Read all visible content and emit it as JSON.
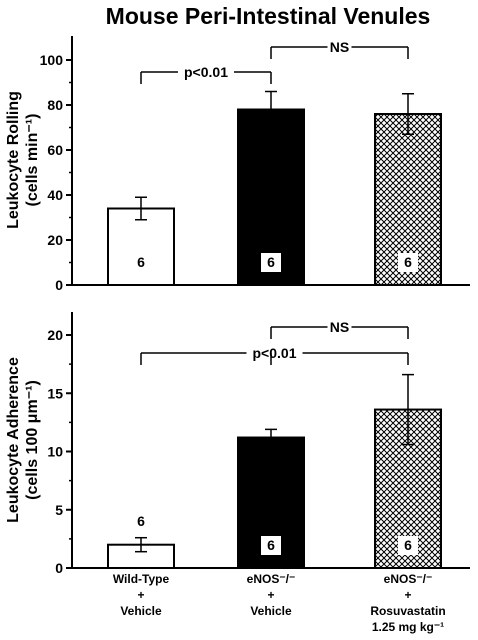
{
  "title": "Mouse Peri-Intestinal Venules",
  "categories": [
    [
      "Wild-Type",
      "+",
      "Vehicle"
    ],
    [
      "eNOS⁻/⁻",
      "+",
      "Vehicle"
    ],
    [
      "eNOS⁻/⁻",
      "+",
      "Rosuvastatin",
      "1.25 mg kg⁻¹"
    ]
  ],
  "colors": {
    "bar_fills": [
      "#ffffff",
      "#000000",
      "crosshatch"
    ],
    "stroke": "#000000"
  },
  "chart_data": [
    {
      "type": "bar",
      "ylabel": [
        "Leukocyte Rolling",
        "(cells min⁻¹)"
      ],
      "ylim": [
        0,
        100
      ],
      "yticks": [
        0,
        20,
        40,
        60,
        80,
        100
      ],
      "values": [
        34,
        78,
        76
      ],
      "errors": [
        5,
        8,
        9
      ],
      "n_labels": [
        "6",
        "6",
        "6"
      ],
      "annotations": [
        {
          "text": "p<0.01",
          "from": 0,
          "to": 1
        },
        {
          "text": "NS",
          "from": 1,
          "to": 2
        }
      ]
    },
    {
      "type": "bar",
      "ylabel": [
        "Leukocyte Adherence",
        "(cells 100 μm⁻¹)"
      ],
      "ylim": [
        0,
        20
      ],
      "yticks": [
        0,
        5,
        10,
        15,
        20
      ],
      "values": [
        2.0,
        11.2,
        13.6
      ],
      "errors": [
        0.6,
        0.7,
        3.0
      ],
      "n_labels": [
        "6",
        "6",
        "6"
      ],
      "annotations": [
        {
          "text": "p<0.01",
          "from": 0,
          "to": 2
        },
        {
          "text": "NS",
          "from": 1,
          "to": 2
        }
      ]
    }
  ]
}
